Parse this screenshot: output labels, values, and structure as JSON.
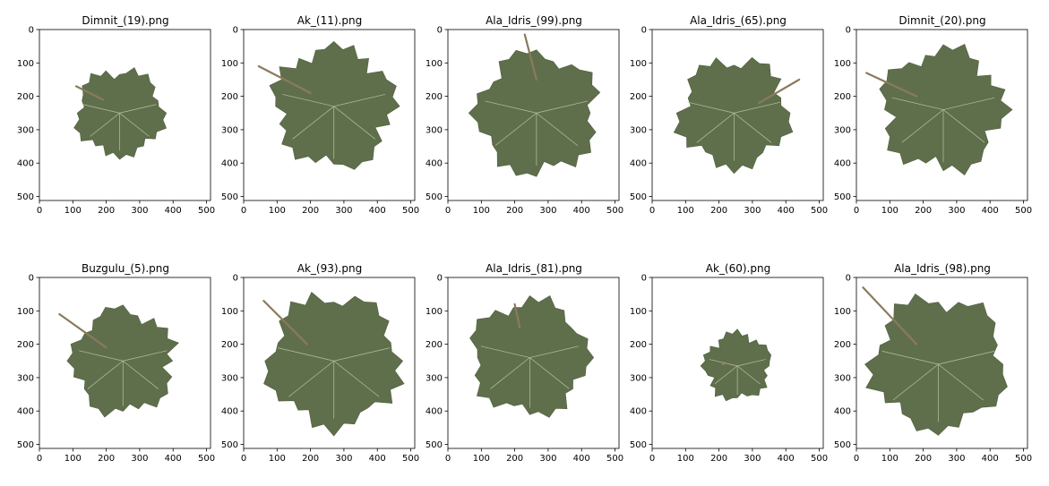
{
  "axis": {
    "xticks": [
      "0",
      "100",
      "200",
      "300",
      "400",
      "500"
    ],
    "yticks": [
      "0",
      "100",
      "200",
      "300",
      "400",
      "500"
    ]
  },
  "colors": {
    "leaf": "#5f6f4c",
    "leaf_dark": "#4f5e3e",
    "vein": "#b9bf9e",
    "stem": "#8b7a5c"
  },
  "panels": [
    {
      "title": "Dimnit_(19).png"
    },
    {
      "title": "Ak_(11).png"
    },
    {
      "title": "Ala_Idris_(99).png"
    },
    {
      "title": "Ala_Idris_(65).png"
    },
    {
      "title": "Dimnit_(20).png"
    },
    {
      "title": "Buzgulu_(5).png"
    },
    {
      "title": "Ak_(93).png"
    },
    {
      "title": "Ala_Idris_(81).png"
    },
    {
      "title": "Ak_(60).png"
    },
    {
      "title": "Ala_Idris_(98).png"
    }
  ]
}
